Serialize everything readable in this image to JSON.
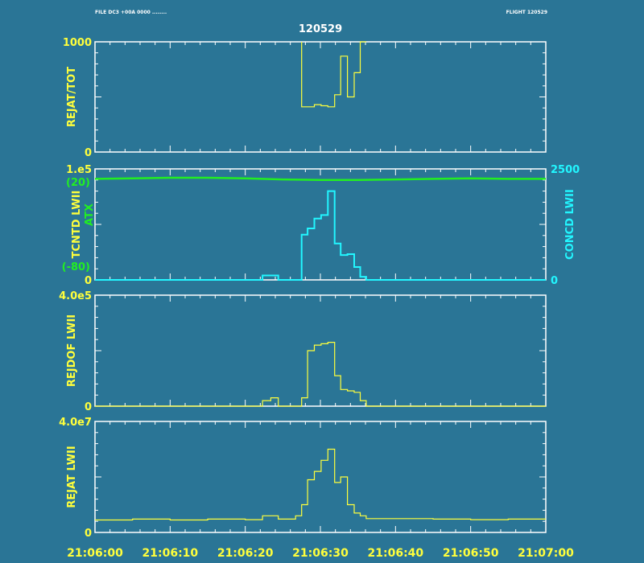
{
  "header": {
    "left_text": "FILE DC3 +00A 0000 ........",
    "right_text": "FLIGHT 120529",
    "title": "120529"
  },
  "colors": {
    "background": "#2a7596",
    "frame": "#ffffff",
    "yellow": "#ffff3c",
    "green": "#22ee22",
    "cyan": "#22f6ff"
  },
  "chart_data": [
    {
      "type": "line",
      "step": true,
      "title": "",
      "ylabel": "REJAT/TOT",
      "ylim": [
        0,
        1000
      ],
      "yticks": [
        "1000",
        "0"
      ],
      "xlim": [
        "21:06:00",
        "21:07:00"
      ],
      "series": [
        {
          "color": "#ffff3c",
          "x": [
            27.5,
            27.5,
            28.3,
            29.2,
            30.1,
            31.0,
            31.9,
            32.7,
            33.6,
            34.5,
            35.3,
            36.1
          ],
          "y": [
            1000,
            410,
            410,
            430,
            420,
            410,
            520,
            870,
            500,
            720,
            1000,
            1000
          ]
        }
      ]
    },
    {
      "type": "line",
      "step": true,
      "title": "",
      "ylabel_left": "TCNTD LWII",
      "ylabel_left_extra": "ATX",
      "ylabel_right": "CONCD LWII",
      "ylim_left": [
        0,
        100000
      ],
      "yticks_left": [
        "1.e5",
        "0"
      ],
      "ylim_right": [
        0,
        2500
      ],
      "yticks_right": [
        "2500",
        "0"
      ],
      "atx_labels": [
        "(20)",
        "(-80)"
      ],
      "xlim": [
        "21:06:00",
        "21:07:00"
      ],
      "series": [
        {
          "name": "ATX",
          "color": "#22ee22",
          "x": [
            0,
            5,
            10,
            15,
            20,
            25,
            30,
            35,
            40,
            45,
            50,
            55,
            60
          ],
          "y": [
            91000,
            91500,
            92000,
            92000,
            91500,
            90500,
            90000,
            90000,
            90500,
            91000,
            91500,
            91000,
            91000
          ]
        },
        {
          "name": "CONCD LWII",
          "color": "#22f6ff",
          "x": [
            0,
            22.3,
            24.4,
            27.5,
            28.3,
            29.2,
            30.1,
            31.0,
            31.9,
            32.7,
            33.6,
            34.5,
            35.3,
            36.1,
            60
          ],
          "y": [
            0,
            100,
            0,
            1020,
            1160,
            1380,
            1460,
            2000,
            820,
            560,
            580,
            290,
            70,
            0,
            0
          ]
        }
      ]
    },
    {
      "type": "line",
      "step": true,
      "title": "",
      "ylabel": "REJDOF LWII",
      "ylim": [
        0,
        400000
      ],
      "yticks": [
        "4.0e5",
        "0"
      ],
      "xlim": [
        "21:06:00",
        "21:07:00"
      ],
      "series": [
        {
          "color": "#ffff3c",
          "x": [
            0,
            22.3,
            23.4,
            24.4,
            26.7,
            27.5,
            28.3,
            29.2,
            30.1,
            31.0,
            31.9,
            32.7,
            33.6,
            34.5,
            35.3,
            36.1,
            60
          ],
          "y": [
            0,
            20000,
            30000,
            0,
            0,
            30000,
            200000,
            220000,
            225000,
            230000,
            110000,
            60000,
            55000,
            50000,
            20000,
            0,
            0
          ]
        }
      ]
    },
    {
      "type": "line",
      "step": true,
      "title": "",
      "ylabel": "REJAT LWII",
      "ylim": [
        0,
        40000000
      ],
      "yticks": [
        "4.0e7",
        "0"
      ],
      "xlim": [
        "21:06:00",
        "21:07:00"
      ],
      "x_ticklabels": [
        "21:06:00",
        "21:06:10",
        "21:06:20",
        "21:06:30",
        "21:06:40",
        "21:06:50",
        "21:07:00"
      ],
      "series": [
        {
          "color": "#ffff3c",
          "x": [
            0,
            5,
            10,
            15,
            20,
            22.3,
            24.4,
            26.7,
            27.5,
            28.3,
            29.2,
            30.1,
            31.0,
            31.9,
            32.7,
            33.6,
            34.5,
            35.3,
            36.1,
            40,
            45,
            50,
            55,
            60
          ],
          "y": [
            4500000,
            4800000,
            4500000,
            4800000,
            4600000,
            6000000,
            4800000,
            6000000,
            10000000,
            19000000,
            22000000,
            26000000,
            30000000,
            18000000,
            20000000,
            10000000,
            7000000,
            6000000,
            5000000,
            5000000,
            4800000,
            4600000,
            4800000,
            4800000
          ]
        }
      ]
    }
  ]
}
